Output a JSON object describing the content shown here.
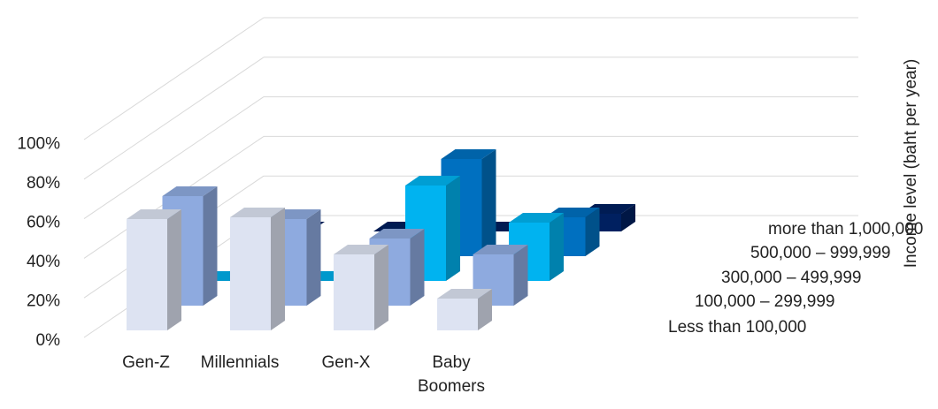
{
  "chart_data": {
    "type": "bar",
    "title": "",
    "xlabel": "",
    "ylabel": "",
    "zlabel": "Income level (baht per year)",
    "ylim": [
      0,
      100
    ],
    "yticks": [
      "0%",
      "20%",
      "40%",
      "60%",
      "80%",
      "100%"
    ],
    "categories": [
      "Gen-Z",
      "Millennials",
      "Gen-X",
      "Baby Boomers"
    ],
    "category_labels": [
      [
        "Gen-Z"
      ],
      [
        "Millennials"
      ],
      [
        "Gen-X"
      ],
      [
        "Baby",
        "Boomers"
      ]
    ],
    "series": [
      {
        "name": "Less than 100,000",
        "color": "#dde3f2",
        "values": [
          63,
          64,
          43,
          18
        ]
      },
      {
        "name": "100,000 – 299,999",
        "color": "#8eaadf",
        "values": [
          62,
          49,
          38,
          29
        ]
      },
      {
        "name": "300,000 – 499,999",
        "color": "#00b3f0",
        "values": [
          0,
          0,
          54,
          33
        ]
      },
      {
        "name": "500,000 – 999,999",
        "color": "#0070c0",
        "values": [
          0,
          0,
          55,
          22
        ]
      },
      {
        "name": "more than 1,000,000",
        "color": "#002060",
        "values": [
          0,
          0,
          0,
          10
        ]
      }
    ],
    "grid": true,
    "projection": "3d"
  }
}
